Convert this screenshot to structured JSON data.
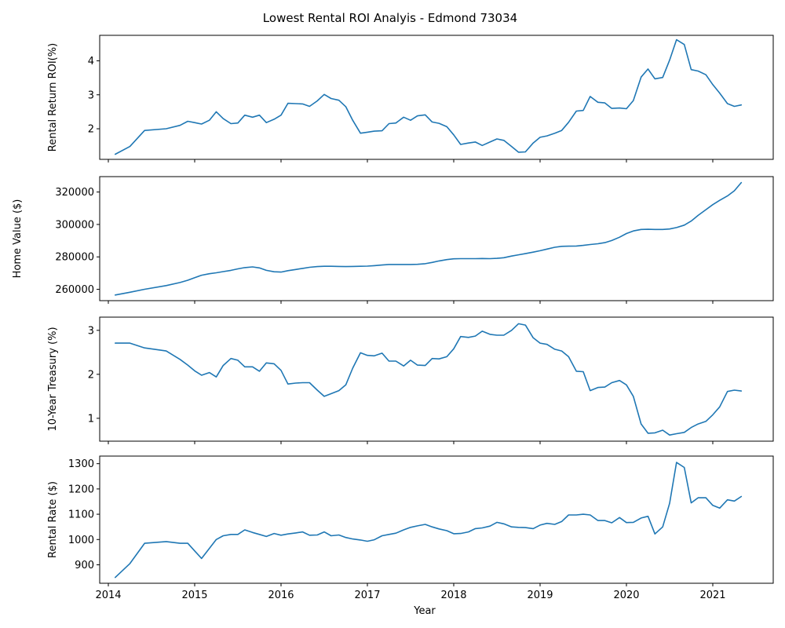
{
  "figure": {
    "title": "Lowest Rental ROI Analyis - Edmond 73034",
    "xlabel": "Year",
    "xticks": [
      2014,
      2015,
      2016,
      2017,
      2018,
      2019,
      2020,
      2021
    ],
    "xlim": [
      2013.9,
      2021.7
    ],
    "line_color": "#1f77b4"
  },
  "chart_data": [
    {
      "type": "line",
      "title": "",
      "xlabel": "",
      "ylabel": "Rental Return ROI(%)",
      "ylim": [
        1.1,
        4.75
      ],
      "yticks": [
        2,
        3,
        4
      ],
      "series": [
        {
          "x": [
            2014.08,
            2014.25,
            2014.42,
            2014.67,
            2014.83,
            2014.92,
            2015.0,
            2015.08,
            2015.17,
            2015.25,
            2015.33,
            2015.42,
            2015.5,
            2015.58,
            2015.67,
            2015.75,
            2015.83,
            2015.92,
            2016.0,
            2016.08,
            2016.17,
            2016.25,
            2016.33,
            2016.42,
            2016.5,
            2016.58,
            2016.67,
            2016.75,
            2016.83,
            2016.92,
            2017.0,
            2017.08,
            2017.17,
            2017.25,
            2017.33,
            2017.42,
            2017.5,
            2017.58,
            2017.67,
            2017.75,
            2017.83,
            2017.92,
            2018.0,
            2018.08,
            2018.17,
            2018.25,
            2018.33,
            2018.42,
            2018.5,
            2018.58,
            2018.67,
            2018.75,
            2018.83,
            2018.92,
            2019.0,
            2019.08,
            2019.17,
            2019.25,
            2019.33,
            2019.42,
            2019.5,
            2019.58,
            2019.67,
            2019.75,
            2019.83,
            2019.92,
            2020.0,
            2020.08,
            2020.17,
            2020.25,
            2020.33,
            2020.42,
            2020.5,
            2020.58,
            2020.67,
            2020.75,
            2020.83,
            2020.92,
            2021.0,
            2021.08,
            2021.17,
            2021.25,
            2021.33
          ],
          "y": [
            1.25,
            1.48,
            1.95,
            2.0,
            2.1,
            2.22,
            2.18,
            2.14,
            2.25,
            2.5,
            2.3,
            2.15,
            2.17,
            2.4,
            2.34,
            2.4,
            2.18,
            2.28,
            2.4,
            2.75,
            2.74,
            2.73,
            2.66,
            2.82,
            3.01,
            2.89,
            2.84,
            2.65,
            2.25,
            1.87,
            1.9,
            1.93,
            1.94,
            2.15,
            2.17,
            2.34,
            2.25,
            2.38,
            2.41,
            2.2,
            2.16,
            2.06,
            1.82,
            1.54,
            1.58,
            1.61,
            1.51,
            1.61,
            1.7,
            1.66,
            1.48,
            1.31,
            1.32,
            1.58,
            1.75,
            1.79,
            1.87,
            1.95,
            2.19,
            2.52,
            2.54,
            2.95,
            2.78,
            2.76,
            2.6,
            2.61,
            2.59,
            2.83,
            3.52,
            3.76,
            3.47,
            3.51,
            4.02,
            4.62,
            4.48,
            3.74,
            3.7,
            3.59,
            3.3,
            3.05,
            2.74,
            2.66,
            2.7
          ]
        }
      ]
    },
    {
      "type": "line",
      "title": "",
      "xlabel": "",
      "ylabel": "Home Value ($)",
      "ylim": [
        253000,
        329500
      ],
      "yticks": [
        260000,
        280000,
        300000,
        320000
      ],
      "series": [
        {
          "x": [
            2014.08,
            2014.25,
            2014.42,
            2014.67,
            2014.83,
            2014.92,
            2015.0,
            2015.08,
            2015.17,
            2015.25,
            2015.33,
            2015.42,
            2015.5,
            2015.58,
            2015.67,
            2015.75,
            2015.83,
            2015.92,
            2016.0,
            2016.08,
            2016.17,
            2016.25,
            2016.33,
            2016.42,
            2016.5,
            2016.58,
            2016.67,
            2016.75,
            2016.83,
            2016.92,
            2017.0,
            2017.08,
            2017.17,
            2017.25,
            2017.33,
            2017.42,
            2017.5,
            2017.58,
            2017.67,
            2017.75,
            2017.83,
            2017.92,
            2018.0,
            2018.08,
            2018.17,
            2018.25,
            2018.33,
            2018.42,
            2018.5,
            2018.58,
            2018.67,
            2018.75,
            2018.83,
            2018.92,
            2019.0,
            2019.08,
            2019.17,
            2019.25,
            2019.33,
            2019.42,
            2019.5,
            2019.58,
            2019.67,
            2019.75,
            2019.83,
            2019.92,
            2020.0,
            2020.08,
            2020.17,
            2020.25,
            2020.33,
            2020.42,
            2020.5,
            2020.58,
            2020.67,
            2020.75,
            2020.83,
            2020.92,
            2021.0,
            2021.08,
            2021.17,
            2021.25,
            2021.33
          ],
          "y": [
            256500,
            258200,
            260000,
            262300,
            264200,
            265600,
            267200,
            268700,
            269600,
            270200,
            270900,
            271700,
            272600,
            273400,
            273800,
            273200,
            271700,
            270800,
            270600,
            271500,
            272200,
            272900,
            273600,
            274000,
            274200,
            274200,
            274100,
            274000,
            274100,
            274200,
            274300,
            274600,
            275000,
            275300,
            275300,
            275300,
            275300,
            275400,
            275800,
            276600,
            277500,
            278300,
            278800,
            278900,
            278900,
            278900,
            279000,
            278900,
            279100,
            279500,
            280500,
            281300,
            282000,
            282900,
            283800,
            284800,
            285900,
            286500,
            286600,
            286700,
            287100,
            287600,
            288100,
            288800,
            290100,
            292100,
            294400,
            296000,
            296900,
            297000,
            296900,
            296900,
            297200,
            298100,
            299600,
            302100,
            305600,
            309100,
            312200,
            314900,
            317600,
            320800,
            325800
          ]
        }
      ]
    },
    {
      "type": "line",
      "title": "",
      "xlabel": "",
      "ylabel": "10-Year Treasury (%)",
      "ylim": [
        0.48,
        3.3
      ],
      "yticks": [
        1,
        2,
        3
      ],
      "series": [
        {
          "x": [
            2014.08,
            2014.25,
            2014.42,
            2014.67,
            2014.83,
            2014.92,
            2015.0,
            2015.08,
            2015.17,
            2015.25,
            2015.33,
            2015.42,
            2015.5,
            2015.58,
            2015.67,
            2015.75,
            2015.83,
            2015.92,
            2016.0,
            2016.08,
            2016.17,
            2016.25,
            2016.33,
            2016.42,
            2016.5,
            2016.58,
            2016.67,
            2016.75,
            2016.83,
            2016.92,
            2017.0,
            2017.08,
            2017.17,
            2017.25,
            2017.33,
            2017.42,
            2017.5,
            2017.58,
            2017.67,
            2017.75,
            2017.83,
            2017.92,
            2018.0,
            2018.08,
            2018.17,
            2018.25,
            2018.33,
            2018.42,
            2018.5,
            2018.58,
            2018.67,
            2018.75,
            2018.83,
            2018.92,
            2019.0,
            2019.08,
            2019.17,
            2019.25,
            2019.33,
            2019.42,
            2019.5,
            2019.58,
            2019.67,
            2019.75,
            2019.83,
            2019.92,
            2020.0,
            2020.08,
            2020.17,
            2020.25,
            2020.33,
            2020.42,
            2020.5,
            2020.58,
            2020.67,
            2020.75,
            2020.83,
            2020.92,
            2021.0,
            2021.08,
            2021.17,
            2021.25,
            2021.33
          ],
          "y": [
            2.71,
            2.71,
            2.6,
            2.53,
            2.34,
            2.21,
            2.08,
            1.98,
            2.04,
            1.94,
            2.2,
            2.36,
            2.32,
            2.17,
            2.17,
            2.07,
            2.26,
            2.24,
            2.09,
            1.78,
            1.8,
            1.81,
            1.81,
            1.64,
            1.5,
            1.56,
            1.63,
            1.76,
            2.14,
            2.49,
            2.43,
            2.42,
            2.48,
            2.3,
            2.3,
            2.19,
            2.32,
            2.21,
            2.2,
            2.36,
            2.35,
            2.4,
            2.58,
            2.86,
            2.84,
            2.87,
            2.98,
            2.91,
            2.89,
            2.89,
            3.0,
            3.15,
            3.12,
            2.83,
            2.71,
            2.68,
            2.57,
            2.53,
            2.4,
            2.07,
            2.06,
            1.63,
            1.7,
            1.71,
            1.81,
            1.86,
            1.76,
            1.5,
            0.87,
            0.66,
            0.67,
            0.73,
            0.62,
            0.65,
            0.68,
            0.79,
            0.87,
            0.93,
            1.08,
            1.26,
            1.61,
            1.64,
            1.62
          ]
        }
      ]
    },
    {
      "type": "line",
      "title": "",
      "xlabel": "Year",
      "ylabel": "Rental Rate ($)",
      "ylim": [
        827,
        1330
      ],
      "yticks": [
        900,
        1000,
        1100,
        1200,
        1300
      ],
      "series": [
        {
          "x": [
            2014.08,
            2014.25,
            2014.42,
            2014.67,
            2014.83,
            2014.92,
            2015.0,
            2015.08,
            2015.17,
            2015.25,
            2015.33,
            2015.42,
            2015.5,
            2015.58,
            2015.67,
            2015.75,
            2015.83,
            2015.92,
            2016.0,
            2016.08,
            2016.17,
            2016.25,
            2016.33,
            2016.42,
            2016.5,
            2016.58,
            2016.67,
            2016.75,
            2016.83,
            2016.92,
            2017.0,
            2017.08,
            2017.17,
            2017.25,
            2017.33,
            2017.42,
            2017.5,
            2017.58,
            2017.67,
            2017.75,
            2017.83,
            2017.92,
            2018.0,
            2018.08,
            2018.17,
            2018.25,
            2018.33,
            2018.42,
            2018.5,
            2018.58,
            2018.67,
            2018.75,
            2018.83,
            2018.92,
            2019.0,
            2019.08,
            2019.17,
            2019.25,
            2019.33,
            2019.42,
            2019.5,
            2019.58,
            2019.67,
            2019.75,
            2019.83,
            2019.92,
            2020.0,
            2020.08,
            2020.17,
            2020.25,
            2020.33,
            2020.42,
            2020.5,
            2020.58,
            2020.67,
            2020.75,
            2020.83,
            2020.92,
            2021.0,
            2021.08,
            2021.17,
            2021.25,
            2021.33
          ],
          "y": [
            850,
            905,
            985,
            992,
            985,
            985,
            955,
            925,
            965,
            1000,
            1015,
            1020,
            1020,
            1038,
            1028,
            1020,
            1012,
            1024,
            1017,
            1022,
            1026,
            1030,
            1017,
            1018,
            1030,
            1015,
            1018,
            1008,
            1002,
            998,
            993,
            999,
            1015,
            1020,
            1025,
            1038,
            1048,
            1054,
            1060,
            1050,
            1042,
            1035,
            1023,
            1024,
            1030,
            1043,
            1046,
            1053,
            1068,
            1062,
            1050,
            1048,
            1047,
            1043,
            1057,
            1064,
            1060,
            1071,
            1097,
            1097,
            1100,
            1097,
            1075,
            1075,
            1066,
            1087,
            1067,
            1068,
            1085,
            1092,
            1022,
            1050,
            1143,
            1305,
            1285,
            1145,
            1165,
            1165,
            1135,
            1124,
            1157,
            1152,
            1170
          ]
        }
      ]
    }
  ]
}
